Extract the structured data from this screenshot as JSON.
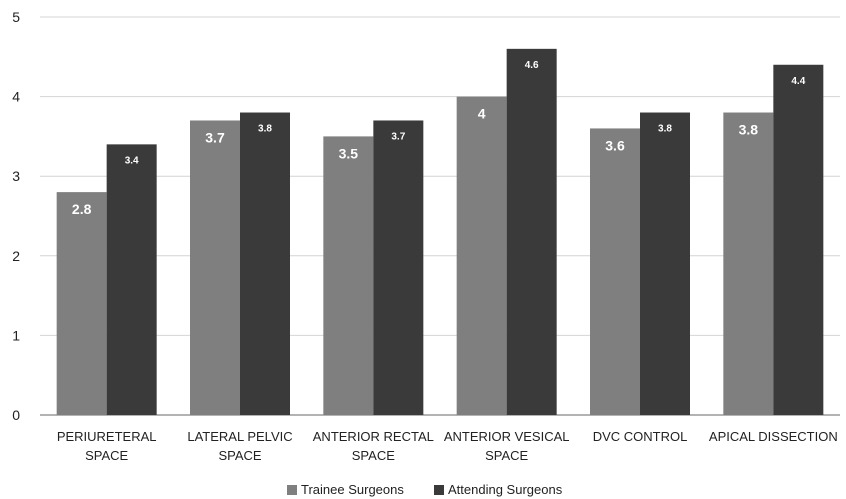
{
  "chart_data": {
    "type": "bar",
    "title": "",
    "xlabel": "",
    "ylabel": "",
    "ylim": [
      0,
      5
    ],
    "yticks": [
      0,
      1,
      2,
      3,
      4,
      5
    ],
    "grid": true,
    "legend_position": "bottom",
    "categories": [
      [
        "PERIURETERAL",
        "SPACE"
      ],
      [
        "LATERAL PELVIC",
        "SPACE"
      ],
      [
        "ANTERIOR  RECTAL",
        "SPACE"
      ],
      [
        "ANTERIOR  VESICAL",
        "SPACE"
      ],
      [
        "DVC CONTROL"
      ],
      [
        "APICAL DISSECTION"
      ]
    ],
    "series": [
      {
        "name": "Trainee Surgeons",
        "color": "#7f7f7f",
        "values": [
          2.8,
          3.7,
          3.5,
          4,
          3.6,
          3.8
        ],
        "labels": [
          "2.8",
          "3.7",
          "3.5",
          "4",
          "3.6",
          "3.8"
        ]
      },
      {
        "name": "Attending Surgeons",
        "color": "#3a3a3a",
        "values": [
          3.4,
          3.8,
          3.7,
          4.6,
          3.8,
          4.4
        ],
        "labels": [
          "3.4",
          "3.8",
          "3.7",
          "4.6",
          "3.8",
          "4.4"
        ]
      }
    ]
  }
}
